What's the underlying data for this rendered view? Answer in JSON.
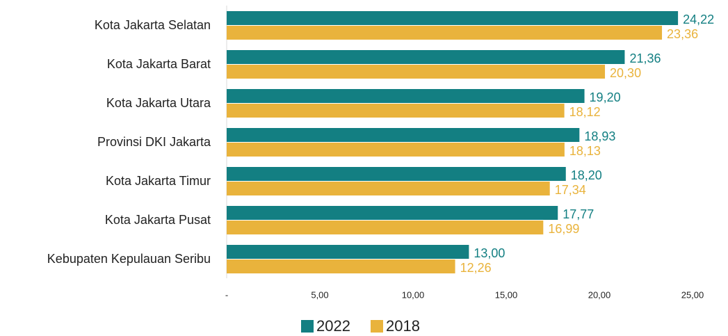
{
  "chart_data": {
    "type": "bar",
    "orientation": "horizontal",
    "categories": [
      "Kota Jakarta Selatan",
      "Kota Jakarta Barat",
      "Kota Jakarta Utara",
      "Provinsi DKI Jakarta",
      "Kota Jakarta Timur",
      "Kota Jakarta Pusat",
      "Kebupaten Kepulauan Seribu"
    ],
    "series": [
      {
        "name": "2022",
        "color": "#137f82",
        "values": [
          24.22,
          21.36,
          19.2,
          18.93,
          18.2,
          17.77,
          13.0
        ],
        "value_labels": [
          "24,22",
          "21,36",
          "19,20",
          "18,93",
          "18,20",
          "17,77",
          "13,00"
        ]
      },
      {
        "name": "2018",
        "color": "#e9b33c",
        "values": [
          23.36,
          20.3,
          18.12,
          18.13,
          17.34,
          16.99,
          12.26
        ],
        "value_labels": [
          "23,36",
          "20,30",
          "18,12",
          "18,13",
          "17,34",
          "16,99",
          "12,26"
        ]
      }
    ],
    "xlim": [
      0,
      25
    ],
    "xticks": [
      {
        "value": 0,
        "label": "-"
      },
      {
        "value": 5,
        "label": "5,00"
      },
      {
        "value": 10,
        "label": "10,00"
      },
      {
        "value": 15,
        "label": "15,00"
      },
      {
        "value": 20,
        "label": "20,00"
      },
      {
        "value": 25,
        "label": "25,00"
      }
    ],
    "grid": false,
    "legend": "bottom"
  }
}
